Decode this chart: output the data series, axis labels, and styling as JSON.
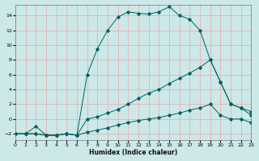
{
  "xlabel": "Humidex (Indice chaleur)",
  "ylabel": "",
  "bg_color": "#cce8e8",
  "grid_color": "#e8b0b0",
  "line_color": "#006060",
  "xlim": [
    0,
    23
  ],
  "ylim": [
    -2.8,
    15.5
  ],
  "xticks": [
    0,
    1,
    2,
    3,
    4,
    5,
    6,
    7,
    8,
    9,
    10,
    11,
    12,
    13,
    14,
    15,
    16,
    17,
    18,
    19,
    20,
    21,
    22,
    23
  ],
  "yticks": [
    -2,
    0,
    2,
    4,
    6,
    8,
    10,
    12,
    14
  ],
  "line1_x": [
    0,
    1,
    2,
    3,
    4,
    5,
    6,
    7,
    8,
    9,
    10,
    11,
    12,
    13,
    14,
    15,
    16,
    17,
    18,
    19,
    20,
    21,
    22,
    23
  ],
  "line1_y": [
    -2,
    -2,
    -1,
    -2.2,
    -2.2,
    -2,
    -2.2,
    6,
    9.5,
    12,
    13.8,
    14.5,
    14.3,
    14.2,
    14.5,
    15.2,
    14.0,
    13.5,
    12,
    8,
    5,
    2,
    1.5,
    1
  ],
  "line2_x": [
    0,
    1,
    2,
    3,
    4,
    5,
    6,
    7,
    8,
    9,
    10,
    11,
    12,
    13,
    14,
    15,
    16,
    17,
    18,
    19,
    20,
    21,
    22,
    23
  ],
  "line2_y": [
    -2,
    -2,
    -2,
    -2.2,
    -2.2,
    -2,
    -2.2,
    0,
    0.3,
    0.8,
    1.3,
    2,
    2.8,
    3.5,
    4,
    4.8,
    5.5,
    6.2,
    7,
    8,
    5,
    2,
    1.5,
    0.5
  ],
  "line3_x": [
    0,
    1,
    2,
    3,
    4,
    5,
    6,
    7,
    8,
    9,
    10,
    11,
    12,
    13,
    14,
    15,
    16,
    17,
    18,
    19,
    20,
    21,
    22,
    23
  ],
  "line3_y": [
    -2,
    -2,
    -2,
    -2.2,
    -2.2,
    -2,
    -2.2,
    -1.8,
    -1.5,
    -1.2,
    -0.8,
    -0.5,
    -0.2,
    0,
    0.2,
    0.5,
    0.8,
    1.2,
    1.5,
    2,
    0.5,
    0,
    0,
    -0.5
  ]
}
